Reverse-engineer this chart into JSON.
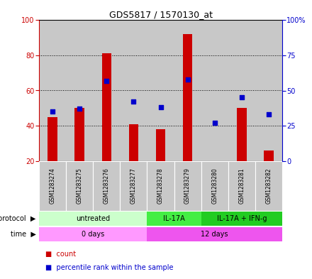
{
  "title": "GDS5817 / 1570130_at",
  "samples": [
    "GSM1283274",
    "GSM1283275",
    "GSM1283276",
    "GSM1283277",
    "GSM1283278",
    "GSM1283279",
    "GSM1283280",
    "GSM1283281",
    "GSM1283282"
  ],
  "counts": [
    45,
    50,
    81,
    41,
    38,
    92,
    20,
    50,
    26
  ],
  "percentiles": [
    35,
    37,
    57,
    42,
    38,
    58,
    27,
    45,
    33
  ],
  "y_min": 20,
  "y_max": 100,
  "y_ticks_left": [
    20,
    40,
    60,
    80,
    100
  ],
  "y_ticks_right_vals": [
    0,
    25,
    50,
    75,
    100
  ],
  "y_ticks_right_labels": [
    "0",
    "25",
    "50",
    "75",
    "100%"
  ],
  "protocol_groups": [
    {
      "label": "untreated",
      "start": 0,
      "end": 4,
      "color": "#ccffcc"
    },
    {
      "label": "IL-17A",
      "start": 4,
      "end": 6,
      "color": "#44ee44"
    },
    {
      "label": "IL-17A + IFN-g",
      "start": 6,
      "end": 9,
      "color": "#22cc22"
    }
  ],
  "time_groups": [
    {
      "label": "0 days",
      "start": 0,
      "end": 4,
      "color": "#ff99ff"
    },
    {
      "label": "12 days",
      "start": 4,
      "end": 9,
      "color": "#ee55ee"
    }
  ],
  "bar_color": "#cc0000",
  "dot_color": "#0000cc",
  "sample_bg_color": "#c8c8c8",
  "left_axis_color": "#cc0000",
  "right_axis_color": "#0000cc"
}
